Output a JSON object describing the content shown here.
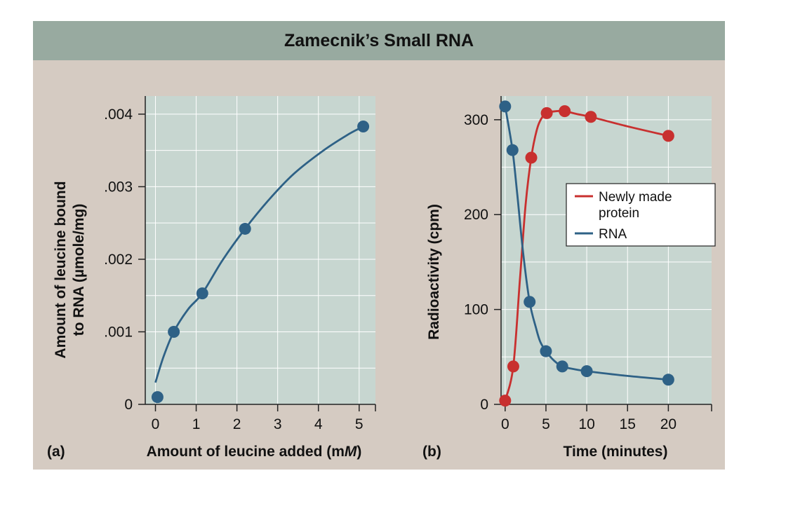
{
  "title": "Zamecnik’s Small RNA",
  "colors": {
    "plot_bg": "#c7d6d0",
    "frame_bg": "#d5cbc2",
    "title_bg": "#98aaa0",
    "blue": "#2e6186",
    "red": "#c8302f",
    "grid": "#ffffff"
  },
  "chart_data": [
    {
      "panel": "(a)",
      "type": "scatter",
      "title": "",
      "xlabel_prefix": "Amount of leucine added (m",
      "xlabel_unit": "M",
      "xlabel_suffix": ")",
      "ylabel_line1": "Amount of leucine bound",
      "ylabel_line2": "to RNA (µmole/mg)",
      "xlim": [
        -0.25,
        5.4
      ],
      "ylim": [
        0,
        0.00425
      ],
      "xticks": [
        0,
        1,
        2,
        3,
        4,
        5
      ],
      "xtick_labels": [
        "0",
        "1",
        "2",
        "3",
        "4",
        "5"
      ],
      "yticks": [
        0,
        0.001,
        0.002,
        0.003,
        0.004
      ],
      "ytick_labels": [
        "0",
        ".001",
        ".002",
        ".003",
        ".004"
      ],
      "grid": true,
      "series": [
        {
          "name": "Leucine bound",
          "points": [
            {
              "x": 0.05,
              "y": 0.0001
            },
            {
              "x": 0.45,
              "y": 0.001
            },
            {
              "x": 1.15,
              "y": 0.00153
            },
            {
              "x": 2.2,
              "y": 0.00242
            },
            {
              "x": 5.1,
              "y": 0.00383
            }
          ],
          "curve": [
            [
              0.0,
              0.0003
            ],
            [
              0.2,
              0.00066
            ],
            [
              0.45,
              0.001
            ],
            [
              0.8,
              0.00131
            ],
            [
              1.15,
              0.00153
            ],
            [
              1.65,
              0.00199
            ],
            [
              2.2,
              0.00242
            ],
            [
              2.8,
              0.00283
            ],
            [
              3.4,
              0.00318
            ],
            [
              4.1,
              0.00349
            ],
            [
              4.7,
              0.00371
            ],
            [
              5.1,
              0.00383
            ]
          ]
        }
      ]
    },
    {
      "panel": "(b)",
      "type": "line",
      "title": "",
      "xlabel": "Time (minutes)",
      "ylabel": "Radioactivity (cpm)",
      "xlim": [
        -0.5,
        25.3
      ],
      "ylim": [
        0,
        325
      ],
      "xticks": [
        0,
        5,
        10,
        15,
        20
      ],
      "xtick_labels": [
        "0",
        "5",
        "10",
        "15",
        "20"
      ],
      "yticks": [
        0,
        100,
        200,
        300
      ],
      "ytick_labels": [
        "0",
        "100",
        "200",
        "300"
      ],
      "grid": true,
      "legend_position": "top-right",
      "series": [
        {
          "name": "Newly made protein",
          "legend_line1": "Newly made",
          "legend_line2": "protein",
          "color": "#c8302f",
          "points": [
            {
              "x": 0,
              "y": 4
            },
            {
              "x": 1,
              "y": 40
            },
            {
              "x": 3.2,
              "y": 260
            },
            {
              "x": 5.1,
              "y": 307
            },
            {
              "x": 7.3,
              "y": 309
            },
            {
              "x": 10.5,
              "y": 303
            },
            {
              "x": 20,
              "y": 283
            }
          ],
          "curve": [
            [
              0,
              4
            ],
            [
              1,
              40
            ],
            [
              1.8,
              130
            ],
            [
              2.5,
              210
            ],
            [
              3.2,
              260
            ],
            [
              3.9,
              290
            ],
            [
              4.5,
              302
            ],
            [
              5.1,
              307
            ],
            [
              6.2,
              309
            ],
            [
              7.3,
              309
            ],
            [
              8.8,
              306
            ],
            [
              10.5,
              303
            ],
            [
              15,
              293
            ],
            [
              20,
              283
            ]
          ]
        },
        {
          "name": "RNA",
          "legend_line1": "RNA",
          "color": "#2e6186",
          "points": [
            {
              "x": 0,
              "y": 314
            },
            {
              "x": 0.9,
              "y": 268
            },
            {
              "x": 3,
              "y": 108
            },
            {
              "x": 5,
              "y": 56
            },
            {
              "x": 7,
              "y": 40
            },
            {
              "x": 10,
              "y": 35
            },
            {
              "x": 20,
              "y": 26
            }
          ],
          "curve": [
            [
              0,
              314
            ],
            [
              0.9,
              268
            ],
            [
              1.5,
              220
            ],
            [
              2.2,
              160
            ],
            [
              3,
              108
            ],
            [
              3.8,
              80
            ],
            [
              4.3,
              66
            ],
            [
              5,
              56
            ],
            [
              6,
              46
            ],
            [
              7,
              40
            ],
            [
              8.5,
              37
            ],
            [
              10,
              35
            ],
            [
              15,
              30
            ],
            [
              20,
              26
            ]
          ]
        }
      ]
    }
  ]
}
